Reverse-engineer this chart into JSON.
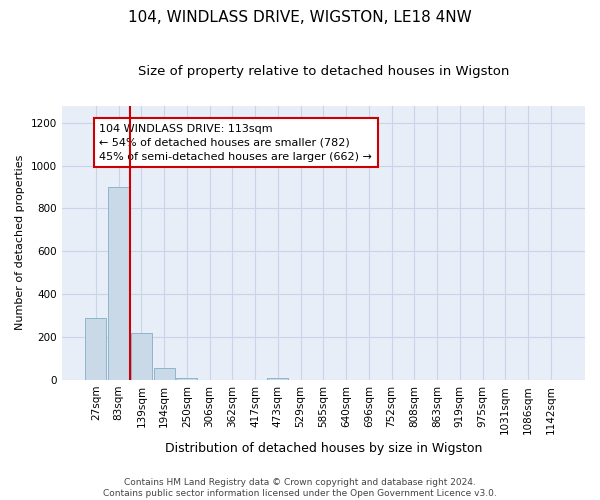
{
  "title": "104, WINDLASS DRIVE, WIGSTON, LE18 4NW",
  "subtitle": "Size of property relative to detached houses in Wigston",
  "xlabel": "Distribution of detached houses by size in Wigston",
  "ylabel": "Number of detached properties",
  "bar_labels": [
    "27sqm",
    "83sqm",
    "139sqm",
    "194sqm",
    "250sqm",
    "306sqm",
    "362sqm",
    "417sqm",
    "473sqm",
    "529sqm",
    "585sqm",
    "640sqm",
    "696sqm",
    "752sqm",
    "808sqm",
    "863sqm",
    "919sqm",
    "975sqm",
    "1031sqm",
    "1086sqm",
    "1142sqm"
  ],
  "bar_values": [
    290,
    900,
    220,
    55,
    10,
    0,
    0,
    0,
    10,
    0,
    0,
    0,
    0,
    0,
    0,
    0,
    0,
    0,
    0,
    0,
    0
  ],
  "bar_color": "#c9d9e8",
  "bar_edge_color": "#8fb4cc",
  "vline_x": 1.5,
  "vline_color": "#cc0000",
  "annotation_text": "104 WINDLASS DRIVE: 113sqm\n← 54% of detached houses are smaller (782)\n45% of semi-detached houses are larger (662) →",
  "annotation_box_color": "#ffffff",
  "annotation_box_edge": "#cc0000",
  "ylim": [
    0,
    1280
  ],
  "yticks": [
    0,
    200,
    400,
    600,
    800,
    1000,
    1200
  ],
  "grid_color": "#c8d4e8",
  "bg_color": "#e8eef8",
  "footer": "Contains HM Land Registry data © Crown copyright and database right 2024.\nContains public sector information licensed under the Open Government Licence v3.0.",
  "title_fontsize": 11,
  "subtitle_fontsize": 9.5,
  "xlabel_fontsize": 9,
  "ylabel_fontsize": 8,
  "tick_fontsize": 7.5,
  "footer_fontsize": 6.5,
  "annot_fontsize": 8
}
